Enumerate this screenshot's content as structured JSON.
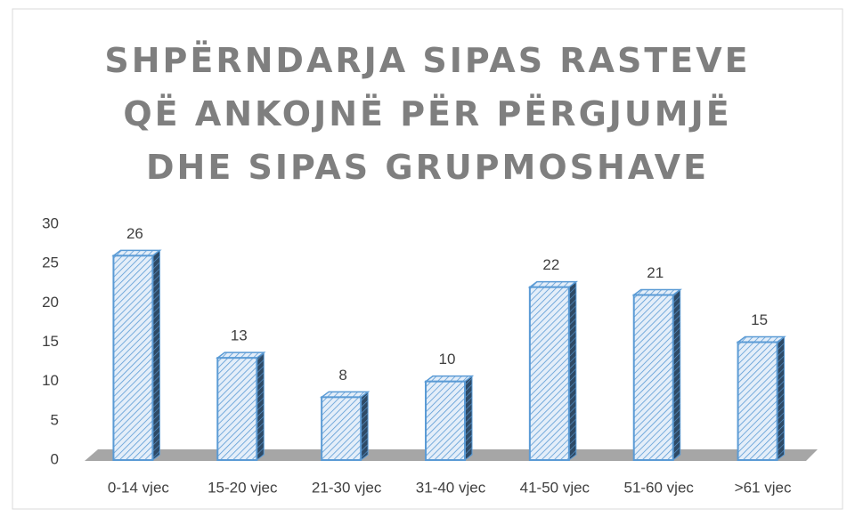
{
  "chart_data": {
    "type": "bar",
    "title": "SHPËRNDARJA SIPAS RASTEVE QË ANKOJNË PËR PËRGJUMJË DHE SIPAS GRUPMOSHAVE",
    "categories": [
      "0-14 vjec",
      "15-20 vjec",
      "21-30 vjec",
      "31-40 vjec",
      "41-50 vjec",
      "51-60 vjec",
      ">61 vjec"
    ],
    "values": [
      26,
      13,
      8,
      10,
      22,
      21,
      15
    ],
    "color": "#5b9bd5",
    "ylim": [
      0,
      30
    ],
    "yticks": [
      0,
      5,
      10,
      15,
      20,
      25,
      30
    ],
    "grid": false
  }
}
